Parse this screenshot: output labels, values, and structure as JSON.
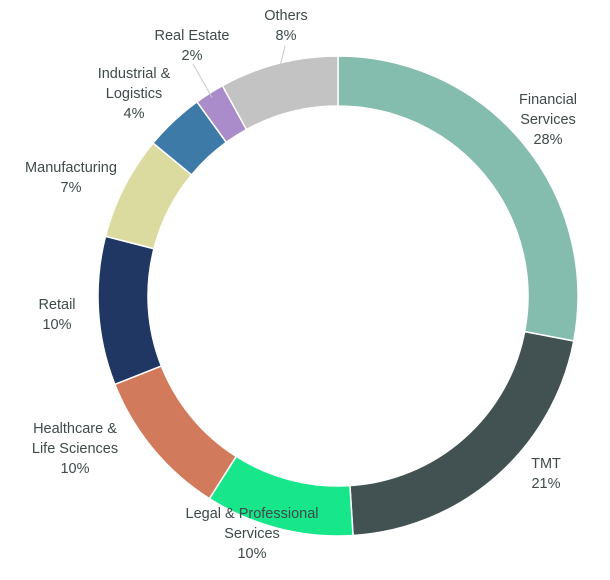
{
  "chart_data": {
    "type": "pie",
    "variant": "donut",
    "title": "",
    "slices": [
      {
        "label": [
          "Financial",
          "Services"
        ],
        "value": 28,
        "display": "28%",
        "color": "#84bcad"
      },
      {
        "label": [
          "TMT"
        ],
        "value": 21,
        "display": "21%",
        "color": "#425252"
      },
      {
        "label": [
          "Legal & Professional",
          "Services"
        ],
        "value": 10,
        "display": "10%",
        "color": "#17e68a"
      },
      {
        "label": [
          "Healthcare &",
          "Life Sciences"
        ],
        "value": 10,
        "display": "10%",
        "color": "#d27a5c"
      },
      {
        "label": [
          "Retail"
        ],
        "value": 10,
        "display": "10%",
        "color": "#1f3762"
      },
      {
        "label": [
          "Manufacturing"
        ],
        "value": 7,
        "display": "7%",
        "color": "#dcdb9f"
      },
      {
        "label": [
          "Industrial &",
          "Logistics"
        ],
        "value": 4,
        "display": "4%",
        "color": "#3d7aa8"
      },
      {
        "label": [
          "Real Estate"
        ],
        "value": 2,
        "display": "2%",
        "color": "#a98cc9"
      },
      {
        "label": [
          "Others"
        ],
        "value": 8,
        "display": "8%",
        "color": "#c3c3c3"
      }
    ]
  }
}
